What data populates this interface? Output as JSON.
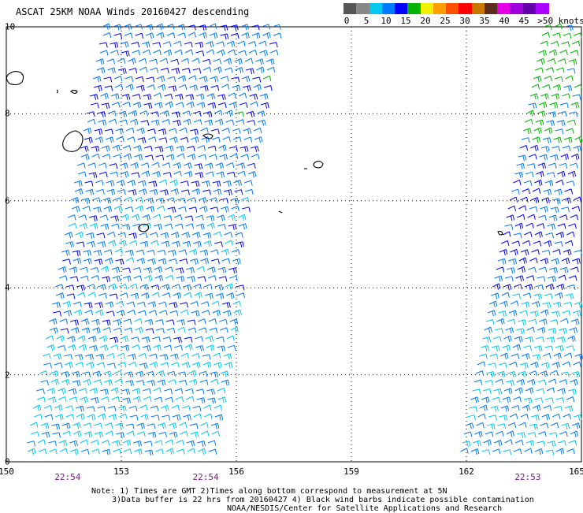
{
  "title": "ASCAT 25KM NOAA Winds 20160427 descending",
  "colorbar": {
    "colors": [
      "#555555",
      "#888888",
      "#00c8f0",
      "#0078ff",
      "#0000ff",
      "#00b400",
      "#f0f000",
      "#ffa000",
      "#ff5000",
      "#ff0000",
      "#c87800",
      "#5a2d1e",
      "#e600e6",
      "#a000dc",
      "#6400aa",
      "#aa00ff"
    ],
    "labels": [
      "0",
      "5",
      "10",
      "15",
      "20",
      "25",
      "30",
      "35",
      "40",
      "45",
      ">50 knots"
    ]
  },
  "axes": {
    "y_ticks": [
      "10",
      "8",
      "6",
      "4",
      "2",
      "0"
    ],
    "x_ticks": [
      "150",
      "153",
      "156",
      "159",
      "162",
      "165"
    ]
  },
  "pass_times": [
    "22:54",
    "22:54",
    "22:53"
  ],
  "notes": [
    "Note: 1) Times are GMT 2)Times along bottom correspond to measurement at 5N",
    "3)Data buffer is 22 hrs from 20160427 4) Black wind barbs indicate possible contamination",
    "NOAA/NESDIS/Center for Satellite Applications and Research"
  ],
  "map_data": {
    "lat_range": [
      0,
      10
    ],
    "lon_range": [
      150,
      165
    ],
    "swaths": [
      {
        "name": "west",
        "pass_time": "22:54",
        "dominant_speed_knots": "5-15"
      },
      {
        "name": "east",
        "pass_time": "22:53",
        "dominant_speed_knots": "10-20"
      }
    ],
    "barb_colors": {
      "light_blue": "#00c8f0",
      "blue": "#0078ff",
      "dark_blue": "#0000ff",
      "green": "#00b400"
    }
  }
}
